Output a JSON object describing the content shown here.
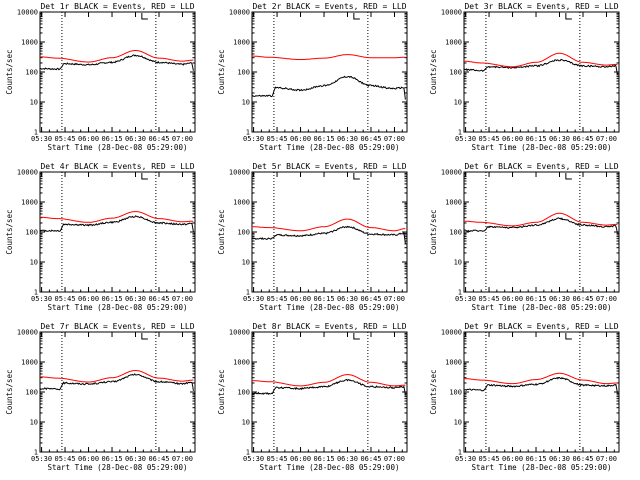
{
  "page": {
    "tick_labels_x": [
      "05:30",
      "05:45",
      "06:00",
      "06:15",
      "06:30",
      "06:45",
      "07:00"
    ],
    "tick_labels_y": [
      "1",
      "10",
      "100",
      "1000",
      "10000"
    ],
    "xlabel": "Start Time (28-Dec-08 05:29:00)",
    "ylabel": "Counts/sec",
    "colors": {
      "events": "#000000",
      "lld": "#ff0000"
    }
  },
  "chart_data": [
    {
      "type": "line",
      "title": "Det 1r BLACK = Events, RED = LLD",
      "xlabel": "Start Time (28-Dec-08 05:29:00)",
      "ylabel": "Counts/sec",
      "x_range": [
        "05:29",
        "07:08"
      ],
      "ylim": [
        1,
        10000
      ],
      "log_y": true,
      "vertical_markers": [
        "05:43",
        "06:43"
      ],
      "series": [
        {
          "name": "Events",
          "color": "#000000",
          "x": [
            "05:29",
            "05:42",
            "05:44",
            "06:00",
            "06:15",
            "06:30",
            "06:45",
            "07:00",
            "07:06",
            "07:07"
          ],
          "y": [
            130,
            125,
            190,
            175,
            210,
            360,
            210,
            180,
            200,
            110
          ]
        },
        {
          "name": "LLD",
          "color": "#ff0000",
          "x": [
            "05:29",
            "05:40",
            "06:00",
            "06:15",
            "06:30",
            "06:45",
            "07:00",
            "07:07"
          ],
          "y": [
            320,
            290,
            215,
            300,
            520,
            290,
            230,
            250
          ]
        }
      ]
    },
    {
      "type": "line",
      "title": "Det 2r BLACK = Events, RED = LLD",
      "xlabel": "Start Time (28-Dec-08 05:29:00)",
      "ylabel": "Counts/sec",
      "x_range": [
        "05:29",
        "07:08"
      ],
      "ylim": [
        1,
        10000
      ],
      "log_y": true,
      "vertical_markers": [
        "05:43",
        "06:43"
      ],
      "series": [
        {
          "name": "Events",
          "color": "#000000",
          "x": [
            "05:29",
            "05:42",
            "05:44",
            "06:00",
            "06:15",
            "06:30",
            "06:45",
            "07:00",
            "07:06",
            "07:07"
          ],
          "y": [
            16,
            16,
            30,
            25,
            35,
            70,
            35,
            28,
            30,
            12
          ]
        },
        {
          "name": "LLD",
          "color": "#ff0000",
          "x": [
            "05:29",
            "05:40",
            "06:00",
            "06:15",
            "06:30",
            "06:45",
            "07:00",
            "07:07"
          ],
          "y": [
            340,
            310,
            260,
            290,
            380,
            300,
            300,
            310
          ]
        }
      ]
    },
    {
      "type": "line",
      "title": "Det 3r BLACK = Events, RED = LLD",
      "xlabel": "Start Time (28-Dec-08 05:29:00)",
      "ylabel": "Counts/sec",
      "x_range": [
        "05:29",
        "07:08"
      ],
      "ylim": [
        1,
        10000
      ],
      "log_y": true,
      "vertical_markers": [
        "05:43",
        "06:43"
      ],
      "series": [
        {
          "name": "Events",
          "color": "#000000",
          "x": [
            "05:29",
            "05:42",
            "05:44",
            "06:00",
            "06:15",
            "06:30",
            "06:45",
            "07:00",
            "07:06",
            "07:07"
          ],
          "y": [
            120,
            110,
            150,
            140,
            160,
            250,
            160,
            150,
            160,
            80
          ]
        },
        {
          "name": "LLD",
          "color": "#ff0000",
          "x": [
            "05:29",
            "05:40",
            "06:00",
            "06:15",
            "06:30",
            "06:45",
            "07:00",
            "07:07"
          ],
          "y": [
            230,
            200,
            150,
            210,
            420,
            210,
            170,
            180
          ]
        }
      ]
    },
    {
      "type": "line",
      "title": "Det 4r BLACK = Events, RED = LLD",
      "xlabel": "Start Time (28-Dec-08 05:29:00)",
      "ylabel": "Counts/sec",
      "x_range": [
        "05:29",
        "07:08"
      ],
      "ylim": [
        1,
        10000
      ],
      "log_y": true,
      "vertical_markers": [
        "05:43",
        "06:43"
      ],
      "series": [
        {
          "name": "Events",
          "color": "#000000",
          "x": [
            "05:29",
            "05:42",
            "05:44",
            "06:00",
            "06:15",
            "06:30",
            "06:45",
            "07:00",
            "07:06",
            "07:07"
          ],
          "y": [
            110,
            110,
            180,
            170,
            210,
            330,
            200,
            180,
            190,
            100
          ]
        },
        {
          "name": "LLD",
          "color": "#ff0000",
          "x": [
            "05:29",
            "05:40",
            "06:00",
            "06:15",
            "06:30",
            "06:45",
            "07:00",
            "07:07"
          ],
          "y": [
            310,
            280,
            210,
            290,
            480,
            280,
            220,
            230
          ]
        }
      ]
    },
    {
      "type": "line",
      "title": "Det 5r BLACK = Events, RED = LLD",
      "xlabel": "Start Time (28-Dec-08 05:29:00)",
      "ylabel": "Counts/sec",
      "x_range": [
        "05:29",
        "07:08"
      ],
      "ylim": [
        1,
        10000
      ],
      "log_y": true,
      "vertical_markers": [
        "05:43",
        "06:43"
      ],
      "series": [
        {
          "name": "Events",
          "color": "#000000",
          "x": [
            "05:29",
            "05:42",
            "05:44",
            "06:00",
            "06:15",
            "06:30",
            "06:45",
            "07:00",
            "07:06",
            "07:07"
          ],
          "y": [
            60,
            60,
            80,
            75,
            90,
            150,
            85,
            80,
            90,
            40
          ]
        },
        {
          "name": "LLD",
          "color": "#ff0000",
          "x": [
            "05:29",
            "05:40",
            "06:00",
            "06:15",
            "06:30",
            "06:45",
            "07:00",
            "07:07"
          ],
          "y": [
            150,
            140,
            110,
            150,
            270,
            140,
            110,
            130
          ]
        }
      ]
    },
    {
      "type": "line",
      "title": "Det 6r BLACK = Events, RED = LLD",
      "xlabel": "Start Time (28-Dec-08 05:29:00)",
      "ylabel": "Counts/sec",
      "x_range": [
        "05:29",
        "07:08"
      ],
      "ylim": [
        1,
        10000
      ],
      "log_y": true,
      "vertical_markers": [
        "05:43",
        "06:43"
      ],
      "series": [
        {
          "name": "Events",
          "color": "#000000",
          "x": [
            "05:29",
            "05:42",
            "05:44",
            "06:00",
            "06:15",
            "06:30",
            "06:45",
            "07:00",
            "07:06",
            "07:07"
          ],
          "y": [
            110,
            110,
            150,
            140,
            170,
            280,
            170,
            150,
            160,
            90
          ]
        },
        {
          "name": "LLD",
          "color": "#ff0000",
          "x": [
            "05:29",
            "05:40",
            "06:00",
            "06:15",
            "06:30",
            "06:45",
            "07:00",
            "07:07"
          ],
          "y": [
            230,
            210,
            160,
            210,
            420,
            210,
            170,
            180
          ]
        }
      ]
    },
    {
      "type": "line",
      "title": "Det 7r BLACK = Events, RED = LLD",
      "xlabel": "Start Time (28-Dec-08 05:29:00)",
      "ylabel": "Counts/sec",
      "x_range": [
        "05:29",
        "07:08"
      ],
      "ylim": [
        1,
        10000
      ],
      "log_y": true,
      "vertical_markers": [
        "05:43",
        "06:43"
      ],
      "series": [
        {
          "name": "Events",
          "color": "#000000",
          "x": [
            "05:29",
            "05:42",
            "05:44",
            "06:00",
            "06:15",
            "06:30",
            "06:45",
            "07:00",
            "07:06",
            "07:07"
          ],
          "y": [
            130,
            125,
            200,
            185,
            220,
            380,
            220,
            190,
            210,
            110
          ]
        },
        {
          "name": "LLD",
          "color": "#ff0000",
          "x": [
            "05:29",
            "05:40",
            "06:00",
            "06:15",
            "06:30",
            "06:45",
            "07:00",
            "07:07"
          ],
          "y": [
            320,
            290,
            215,
            300,
            520,
            290,
            230,
            250
          ]
        }
      ]
    },
    {
      "type": "line",
      "title": "Det 8r BLACK = Events, RED = LLD",
      "xlabel": "Start Time (28-Dec-08 05:29:00)",
      "ylabel": "Counts/sec",
      "x_range": [
        "05:29",
        "07:08"
      ],
      "ylim": [
        1,
        10000
      ],
      "log_y": true,
      "vertical_markers": [
        "05:43",
        "06:43"
      ],
      "series": [
        {
          "name": "Events",
          "color": "#000000",
          "x": [
            "05:29",
            "05:42",
            "05:44",
            "06:00",
            "06:15",
            "06:30",
            "06:45",
            "07:00",
            "07:06",
            "07:07"
          ],
          "y": [
            90,
            90,
            140,
            130,
            150,
            250,
            150,
            140,
            150,
            75
          ]
        },
        {
          "name": "LLD",
          "color": "#ff0000",
          "x": [
            "05:29",
            "05:40",
            "06:00",
            "06:15",
            "06:30",
            "06:45",
            "07:00",
            "07:07"
          ],
          "y": [
            240,
            220,
            160,
            210,
            380,
            210,
            160,
            170
          ]
        }
      ]
    },
    {
      "type": "line",
      "title": "Det 9r BLACK = Events, RED = LLD",
      "xlabel": "Start Time (28-Dec-08 05:29:00)",
      "ylabel": "Counts/sec",
      "x_range": [
        "05:29",
        "07:08"
      ],
      "ylim": [
        1,
        10000
      ],
      "log_y": true,
      "vertical_markers": [
        "05:43",
        "06:43"
      ],
      "series": [
        {
          "name": "Events",
          "color": "#000000",
          "x": [
            "05:29",
            "05:42",
            "05:44",
            "06:00",
            "06:15",
            "06:30",
            "06:45",
            "07:00",
            "07:06",
            "07:07"
          ],
          "y": [
            120,
            115,
            170,
            155,
            180,
            290,
            170,
            160,
            170,
            90
          ]
        },
        {
          "name": "LLD",
          "color": "#ff0000",
          "x": [
            "05:29",
            "05:40",
            "06:00",
            "06:15",
            "06:30",
            "06:45",
            "07:00",
            "07:07"
          ],
          "y": [
            280,
            250,
            190,
            260,
            420,
            250,
            190,
            200
          ]
        }
      ]
    }
  ]
}
